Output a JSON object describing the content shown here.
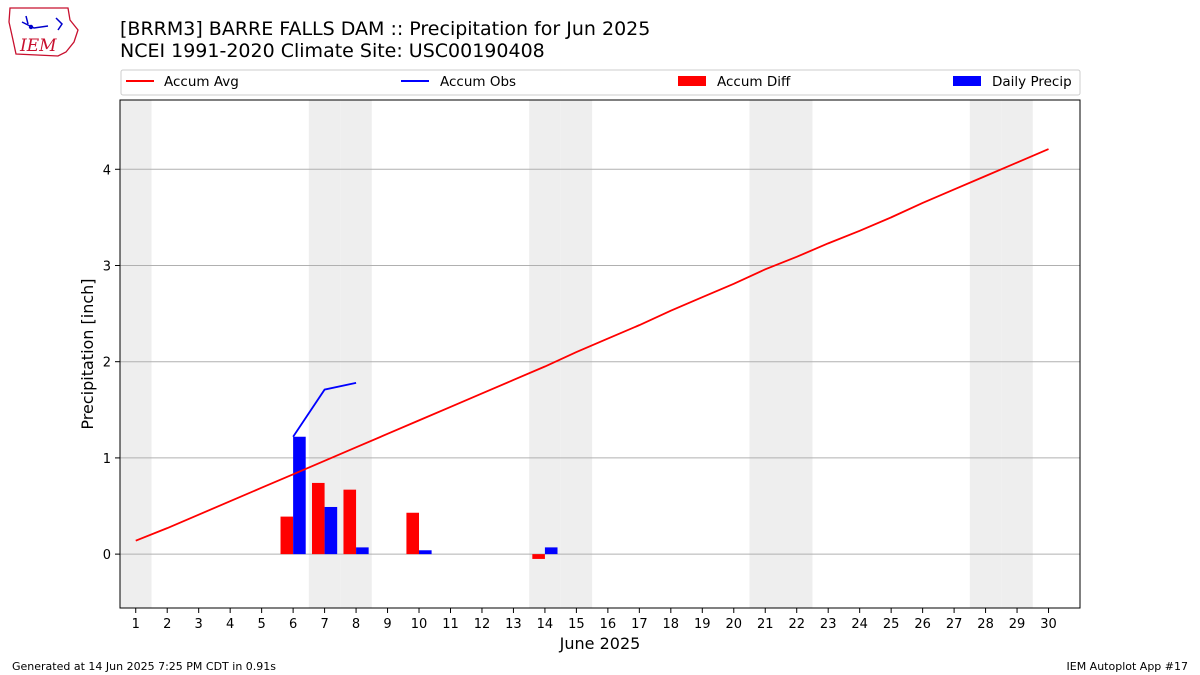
{
  "title_line1": "[BRRM3] BARRE FALLS DAM :: Precipitation for Jun 2025",
  "title_line2": "NCEI 1991-2020 Climate Site: USC00190408",
  "logo_text": "IEM",
  "footer_left": "Generated at 14 Jun 2025 7:25 PM CDT in 0.91s",
  "footer_right": "IEM Autoplot App #17",
  "colors": {
    "avg": "#ff0000",
    "obs": "#0000ff",
    "diff": "#ff0000",
    "daily": "#0000ff",
    "weekend": "#eeeeee",
    "grid": "#b0b0b0"
  },
  "legend": {
    "avg": "Accum Avg",
    "obs": "Accum Obs",
    "diff": "Accum Diff",
    "daily": "Daily Precip"
  },
  "chart_data": {
    "type": "bar+line",
    "title": "[BRRM3] BARRE FALLS DAM :: Precipitation for Jun 2025",
    "subtitle": "NCEI 1991-2020 Climate Site: USC00190408",
    "xlabel": "June 2025",
    "ylabel": "Precipitation [inch]",
    "xlim": [
      0.5,
      31.0
    ],
    "ylim": [
      -0.56,
      4.72
    ],
    "x_ticks": [
      1,
      2,
      3,
      4,
      5,
      6,
      7,
      8,
      9,
      10,
      11,
      12,
      13,
      14,
      15,
      16,
      17,
      18,
      19,
      20,
      21,
      22,
      23,
      24,
      25,
      26,
      27,
      28,
      29,
      30
    ],
    "y_ticks": [
      0,
      1,
      2,
      3,
      4
    ],
    "weekend_days": [
      1,
      7,
      8,
      14,
      15,
      21,
      22,
      28,
      29
    ],
    "series": [
      {
        "name": "Accum Avg",
        "kind": "line",
        "days": [
          1,
          2,
          3,
          4,
          5,
          6,
          7,
          8,
          9,
          10,
          11,
          12,
          13,
          14,
          15,
          16,
          17,
          18,
          19,
          20,
          21,
          22,
          23,
          24,
          25,
          26,
          27,
          28,
          29,
          30
        ],
        "values": [
          0.14,
          0.27,
          0.41,
          0.55,
          0.69,
          0.83,
          0.97,
          1.11,
          1.25,
          1.39,
          1.53,
          1.67,
          1.81,
          1.95,
          2.1,
          2.24,
          2.38,
          2.53,
          2.67,
          2.81,
          2.96,
          3.09,
          3.23,
          3.36,
          3.5,
          3.65,
          3.79,
          3.93,
          4.07,
          4.21
        ]
      },
      {
        "name": "Accum Obs",
        "kind": "line",
        "days": [
          6,
          7,
          8
        ],
        "values": [
          1.22,
          1.71,
          1.78
        ]
      },
      {
        "name": "Accum Diff",
        "kind": "bar",
        "days": [
          6,
          7,
          8,
          10,
          14
        ],
        "values": [
          0.39,
          0.74,
          0.67,
          0.43,
          -0.05
        ]
      },
      {
        "name": "Daily Precip",
        "kind": "bar",
        "days": [
          6,
          7,
          8,
          10,
          14
        ],
        "values": [
          1.22,
          0.49,
          0.07,
          0.04,
          0.07
        ]
      }
    ]
  }
}
